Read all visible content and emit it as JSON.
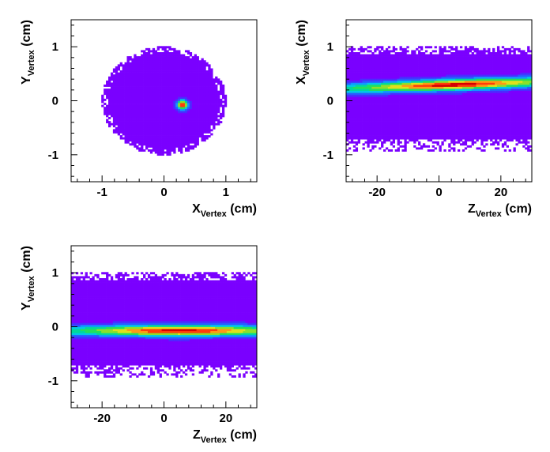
{
  "palette": {
    "background": "#7a00ff",
    "colors": [
      "#7a00ff",
      "#4b2bff",
      "#2a5bff",
      "#1296ff",
      "#00c8e6",
      "#00d89a",
      "#22e05a",
      "#8ce02a",
      "#e0e01a",
      "#ff9a14",
      "#ff3c0a",
      "#d40000"
    ]
  },
  "chart_data": [
    {
      "type": "heatmap",
      "title": "",
      "xlabel": "X",
      "xlabel_sub": "Vertex",
      "xlabel_unit": "(cm)",
      "ylabel": "Y",
      "ylabel_sub": "Vertex",
      "ylabel_unit": "(cm)",
      "xlim": [
        -1.5,
        1.5
      ],
      "ylim": [
        -1.5,
        1.5
      ],
      "xticks": [
        -1,
        0,
        1
      ],
      "xtick_labels": [
        "-1",
        "0",
        "1"
      ],
      "yticks": [
        -1,
        0,
        1
      ],
      "ytick_labels": [
        "-1",
        "0",
        "1"
      ],
      "distribution": "disk",
      "disk": {
        "center_x": 0.0,
        "center_y": 0.0,
        "radius": 1.0
      },
      "peak": {
        "x": 0.3,
        "y": -0.07,
        "sigma_x": 0.06,
        "sigma_y": 0.06
      },
      "grid": false
    },
    {
      "type": "heatmap",
      "title": "",
      "xlabel": "Z",
      "xlabel_sub": "Vertex",
      "xlabel_unit": "(cm)",
      "ylabel": "X",
      "ylabel_sub": "Vertex",
      "ylabel_unit": "(cm)",
      "xlim": [
        -30,
        30
      ],
      "ylim": [
        -1.5,
        1.5
      ],
      "xticks": [
        -20,
        0,
        20
      ],
      "xtick_labels": [
        "-20",
        "0",
        "20"
      ],
      "yticks": [
        -1,
        0,
        1
      ],
      "ytick_labels": [
        "-1",
        "0",
        "1"
      ],
      "distribution": "band",
      "band": {
        "y_min": -1.0,
        "y_max": 1.0
      },
      "peak": {
        "center_x": 5,
        "center_y": 0.3,
        "slope": 0.002,
        "sigma_x": 12,
        "sigma_y": 0.07
      },
      "grid": false
    },
    {
      "type": "heatmap",
      "title": "",
      "xlabel": "Z",
      "xlabel_sub": "Vertex",
      "xlabel_unit": "(cm)",
      "ylabel": "Y",
      "ylabel_sub": "Vertex",
      "ylabel_unit": "(cm)",
      "xlim": [
        -30,
        30
      ],
      "ylim": [
        -1.5,
        1.5
      ],
      "xticks": [
        -20,
        0,
        20
      ],
      "xtick_labels": [
        "-20",
        "0",
        "20"
      ],
      "yticks": [
        -1,
        0,
        1
      ],
      "ytick_labels": [
        "-1",
        "0",
        "1"
      ],
      "distribution": "band",
      "band": {
        "y_min": -1.0,
        "y_max": 1.0
      },
      "peak": {
        "center_x": 5,
        "center_y": -0.07,
        "slope": 0.0,
        "sigma_x": 12,
        "sigma_y": 0.07
      },
      "grid": false
    }
  ]
}
